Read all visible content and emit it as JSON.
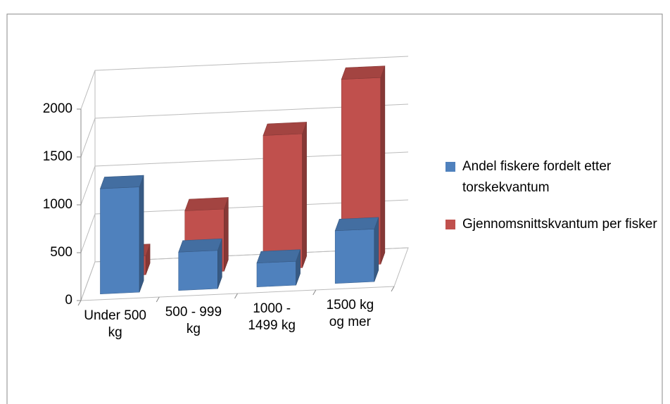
{
  "chart_data": {
    "type": "bar3d",
    "categories": [
      "Under 500 kg",
      "500 - 999 kg",
      "1000 - 1499 kg",
      "1500 kg og mer"
    ],
    "series": [
      {
        "name": "Andel fiskere fordelt etter torskekvantum",
        "color": "#4f81bd",
        "values": [
          1100,
          400,
          250,
          550
        ]
      },
      {
        "name": "Gjennomsnittskvantum per fisker",
        "color": "#c0504d",
        "values": [
          200,
          650,
          1400,
          1950
        ]
      }
    ],
    "ylim": [
      0,
      2000
    ],
    "yticks": [
      0,
      500,
      1000,
      1500,
      2000
    ],
    "grid": true,
    "legend": "right"
  }
}
